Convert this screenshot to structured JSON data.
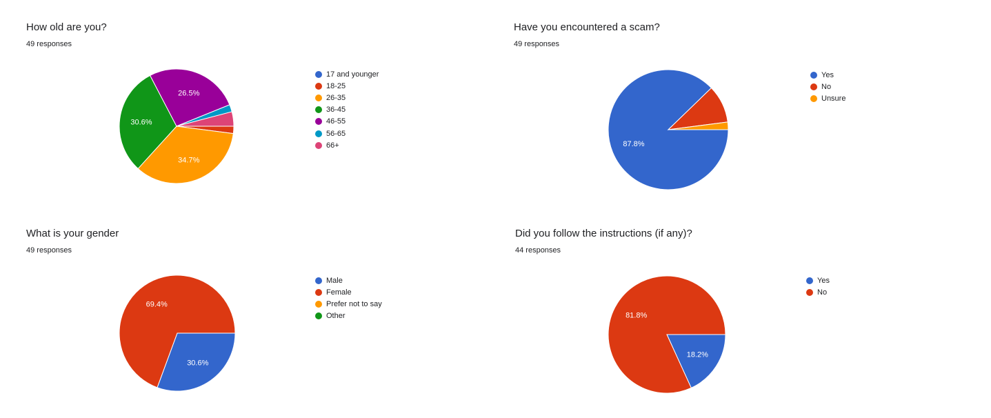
{
  "colors": {
    "blue": "#3366cc",
    "red": "#dc3912",
    "orange": "#ff9900",
    "green": "#109618",
    "purple": "#990099",
    "teal": "#0099c6",
    "pink": "#dd4477"
  },
  "chart_data": [
    {
      "type": "pie",
      "title": "How old are you?",
      "responses_label": "49 responses",
      "categories": [
        "17 and younger",
        "18-25",
        "26-35",
        "36-45",
        "46-55",
        "56-65",
        "66+"
      ],
      "values": [
        0,
        1,
        17,
        15,
        13,
        1,
        2
      ],
      "slice_labels": [
        "",
        "",
        "34.7%",
        "30.6%",
        "26.5%",
        "",
        ""
      ],
      "colors": [
        "#3366cc",
        "#dc3912",
        "#ff9900",
        "#109618",
        "#990099",
        "#0099c6",
        "#dd4477"
      ],
      "legend_position": "right"
    },
    {
      "type": "pie",
      "title": "Have you encountered a scam?",
      "responses_label": "49 responses",
      "categories": [
        "Yes",
        "No",
        "Unsure"
      ],
      "values": [
        43,
        5,
        1
      ],
      "slice_labels": [
        "87.8%",
        "",
        ""
      ],
      "colors": [
        "#3366cc",
        "#dc3912",
        "#ff9900"
      ],
      "legend_position": "right"
    },
    {
      "type": "pie",
      "title": "What is your gender",
      "responses_label": "49 responses",
      "categories": [
        "Male",
        "Female",
        "Prefer not to say",
        "Other"
      ],
      "values": [
        15,
        34,
        0,
        0
      ],
      "slice_labels": [
        "30.6%",
        "69.4%",
        "",
        ""
      ],
      "colors": [
        "#3366cc",
        "#dc3912",
        "#ff9900",
        "#109618"
      ],
      "legend_position": "right"
    },
    {
      "type": "pie",
      "title": "Did you follow the instructions (if any)?",
      "responses_label": "44 responses",
      "categories": [
        "Yes",
        "No"
      ],
      "values": [
        8,
        36
      ],
      "slice_labels": [
        "18.2%",
        "81.8%"
      ],
      "colors": [
        "#3366cc",
        "#dc3912"
      ],
      "legend_position": "right"
    }
  ]
}
